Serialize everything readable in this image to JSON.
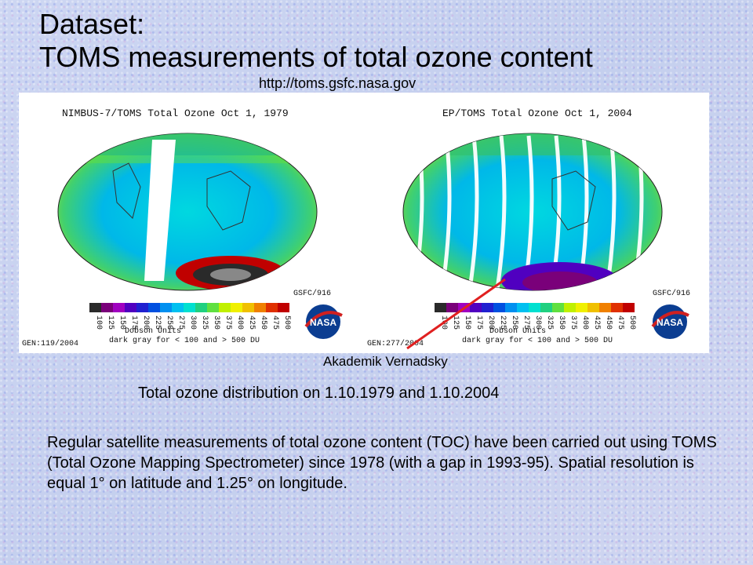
{
  "title": {
    "line1": "Dataset:",
    "line2": "TOMS measurements of total ozone content"
  },
  "url": "http://toms.gsfc.nasa.gov",
  "maps": [
    {
      "header": "NIMBUS-7/TOMS Total Ozone Oct  1, 1979",
      "credit": "GSFC/916",
      "gen": "GEN:119/2004",
      "units": "Dobson Units",
      "note": "dark gray for < 100 and > 500 DU"
    },
    {
      "header": "EP/TOMS Total Ozone Oct  1, 2004",
      "credit": "GSFC/916",
      "gen": "GEN:277/2004",
      "units": "Dobson Units",
      "note": "dark gray for < 100 and > 500 DU"
    }
  ],
  "scale_ticks": [
    "100",
    "125",
    "150",
    "175",
    "200",
    "225",
    "250",
    "275",
    "300",
    "325",
    "350",
    "375",
    "400",
    "425",
    "450",
    "475",
    "500"
  ],
  "scale_colors": [
    "#2a2a2a",
    "#7a007a",
    "#a000c0",
    "#5000c0",
    "#2020d0",
    "#0050e0",
    "#0090f0",
    "#00c0f0",
    "#00e0d0",
    "#20d080",
    "#60e040",
    "#c0f000",
    "#f0f000",
    "#f0c000",
    "#f08000",
    "#e03000",
    "#c00000"
  ],
  "akademik_label": "Akademik Vernadsky",
  "caption": "Total ozone distribution on 1.10.1979 and 1.10.2004",
  "paragraph": "Regular satellite measurements of total ozone content (TOC) have been carried out using TOMS (Total Ozone Mapping Spectrometer) since 1978 (with a gap in 1993-95). Spatial resolution is equal 1° on latitude and 1.25° on longitude.",
  "nasa_logo": "NASA",
  "pointer_color": "#e02020"
}
